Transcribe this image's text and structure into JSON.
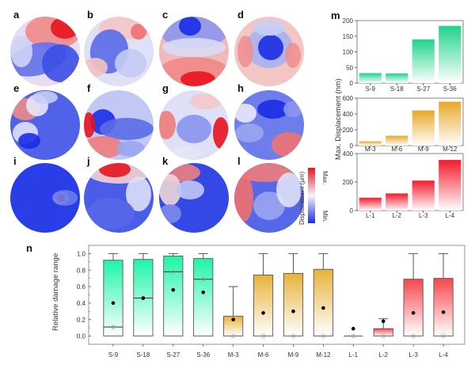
{
  "figure": {
    "panel_labels": [
      "a",
      "b",
      "c",
      "d",
      "e",
      "f",
      "g",
      "h",
      "i",
      "j",
      "k",
      "l",
      "m",
      "n"
    ],
    "colorbar": {
      "label": "Displacement (μm)",
      "max_label": "Max.",
      "min_label": "Min.",
      "colors": {
        "max": "#e8141e",
        "mid": "#f4f4fa",
        "min": "#1a2ee6"
      }
    }
  },
  "chart_data": [
    {
      "id": "m",
      "type": "bar",
      "title": "",
      "ylabel": "Max. Displacement (nm)",
      "subplots": [
        {
          "categories": [
            "S-9",
            "S-18",
            "S-27",
            "S-36"
          ],
          "values": [
            32,
            31,
            140,
            183
          ],
          "ylim": [
            0,
            200
          ],
          "yticks": [
            0,
            50,
            100,
            150,
            200
          ],
          "color": "#1fd48a"
        },
        {
          "categories": [
            "M-3",
            "M-6",
            "M-9",
            "M-12"
          ],
          "values": [
            55,
            125,
            445,
            555
          ],
          "ylim": [
            0,
            600
          ],
          "yticks": [
            0,
            200,
            400,
            600
          ],
          "color": "#e8a82a"
        },
        {
          "categories": [
            "L-1",
            "L-2",
            "L-3",
            "L-4"
          ],
          "values": [
            90,
            120,
            210,
            355
          ],
          "ylim": [
            0,
            400
          ],
          "yticks": [
            0,
            200,
            400
          ],
          "color": "#f21b2c"
        }
      ]
    },
    {
      "id": "n",
      "type": "box",
      "title": "",
      "xlabel": "",
      "ylabel": "Relative damage range",
      "ylim": [
        -0.1,
        1.1
      ],
      "yticks": [
        "0.0",
        "0.2",
        "0.4",
        "0.6",
        "0.8",
        "1.0"
      ],
      "categories": [
        "S-9",
        "S-18",
        "S-27",
        "S-36",
        "M-3",
        "M-6",
        "M-9",
        "M-12",
        "L-1",
        "L-2",
        "L-3",
        "L-4"
      ],
      "boxes": [
        {
          "q1": 0.0,
          "median": 0.11,
          "q3": 0.92,
          "whisker_low": 0.0,
          "whisker_high": 1.0,
          "mean": 0.4,
          "median_marker": 0.11,
          "group": "S"
        },
        {
          "q1": 0.0,
          "median": 0.46,
          "q3": 0.93,
          "whisker_low": 0.0,
          "whisker_high": 1.0,
          "mean": 0.46,
          "median_marker": 0.46,
          "group": "S"
        },
        {
          "q1": 0.0,
          "median": 0.78,
          "q3": 0.97,
          "whisker_low": 0.0,
          "whisker_high": 1.0,
          "mean": 0.56,
          "median_marker": 0.78,
          "group": "S"
        },
        {
          "q1": 0.0,
          "median": 0.69,
          "q3": 0.94,
          "whisker_low": 0.0,
          "whisker_high": 1.0,
          "mean": 0.53,
          "median_marker": 0.69,
          "group": "S"
        },
        {
          "q1": 0.0,
          "median": 0.0,
          "q3": 0.24,
          "whisker_low": 0.0,
          "whisker_high": 0.6,
          "mean": 0.2,
          "median_marker": 0.0,
          "group": "M"
        },
        {
          "q1": 0.0,
          "median": 0.0,
          "q3": 0.74,
          "whisker_low": 0.0,
          "whisker_high": 1.0,
          "mean": 0.28,
          "median_marker": 0.0,
          "group": "M"
        },
        {
          "q1": 0.0,
          "median": 0.0,
          "q3": 0.76,
          "whisker_low": 0.0,
          "whisker_high": 1.0,
          "mean": 0.3,
          "median_marker": 0.0,
          "group": "M"
        },
        {
          "q1": 0.0,
          "median": 0.0,
          "q3": 0.81,
          "whisker_low": 0.0,
          "whisker_high": 1.0,
          "mean": 0.34,
          "median_marker": 0.0,
          "group": "M"
        },
        {
          "q1": 0.0,
          "median": 0.0,
          "q3": 0.0,
          "whisker_low": 0.0,
          "whisker_high": 0.0,
          "mean": 0.09,
          "median_marker": 0.0,
          "group": "L"
        },
        {
          "q1": 0.0,
          "median": 0.0,
          "q3": 0.09,
          "whisker_low": 0.0,
          "whisker_high": 0.21,
          "mean": 0.18,
          "median_marker": 0.0,
          "group": "L"
        },
        {
          "q1": 0.0,
          "median": 0.0,
          "q3": 0.69,
          "whisker_low": 0.0,
          "whisker_high": 1.0,
          "mean": 0.28,
          "median_marker": 0.0,
          "group": "L"
        },
        {
          "q1": 0.0,
          "median": 0.0,
          "q3": 0.7,
          "whisker_low": 0.0,
          "whisker_high": 1.0,
          "mean": 0.29,
          "median_marker": 0.0,
          "group": "L"
        }
      ],
      "group_colors": {
        "S": "#1ff5a8",
        "M": "#e8b23a",
        "L": "#f5474f"
      }
    }
  ]
}
